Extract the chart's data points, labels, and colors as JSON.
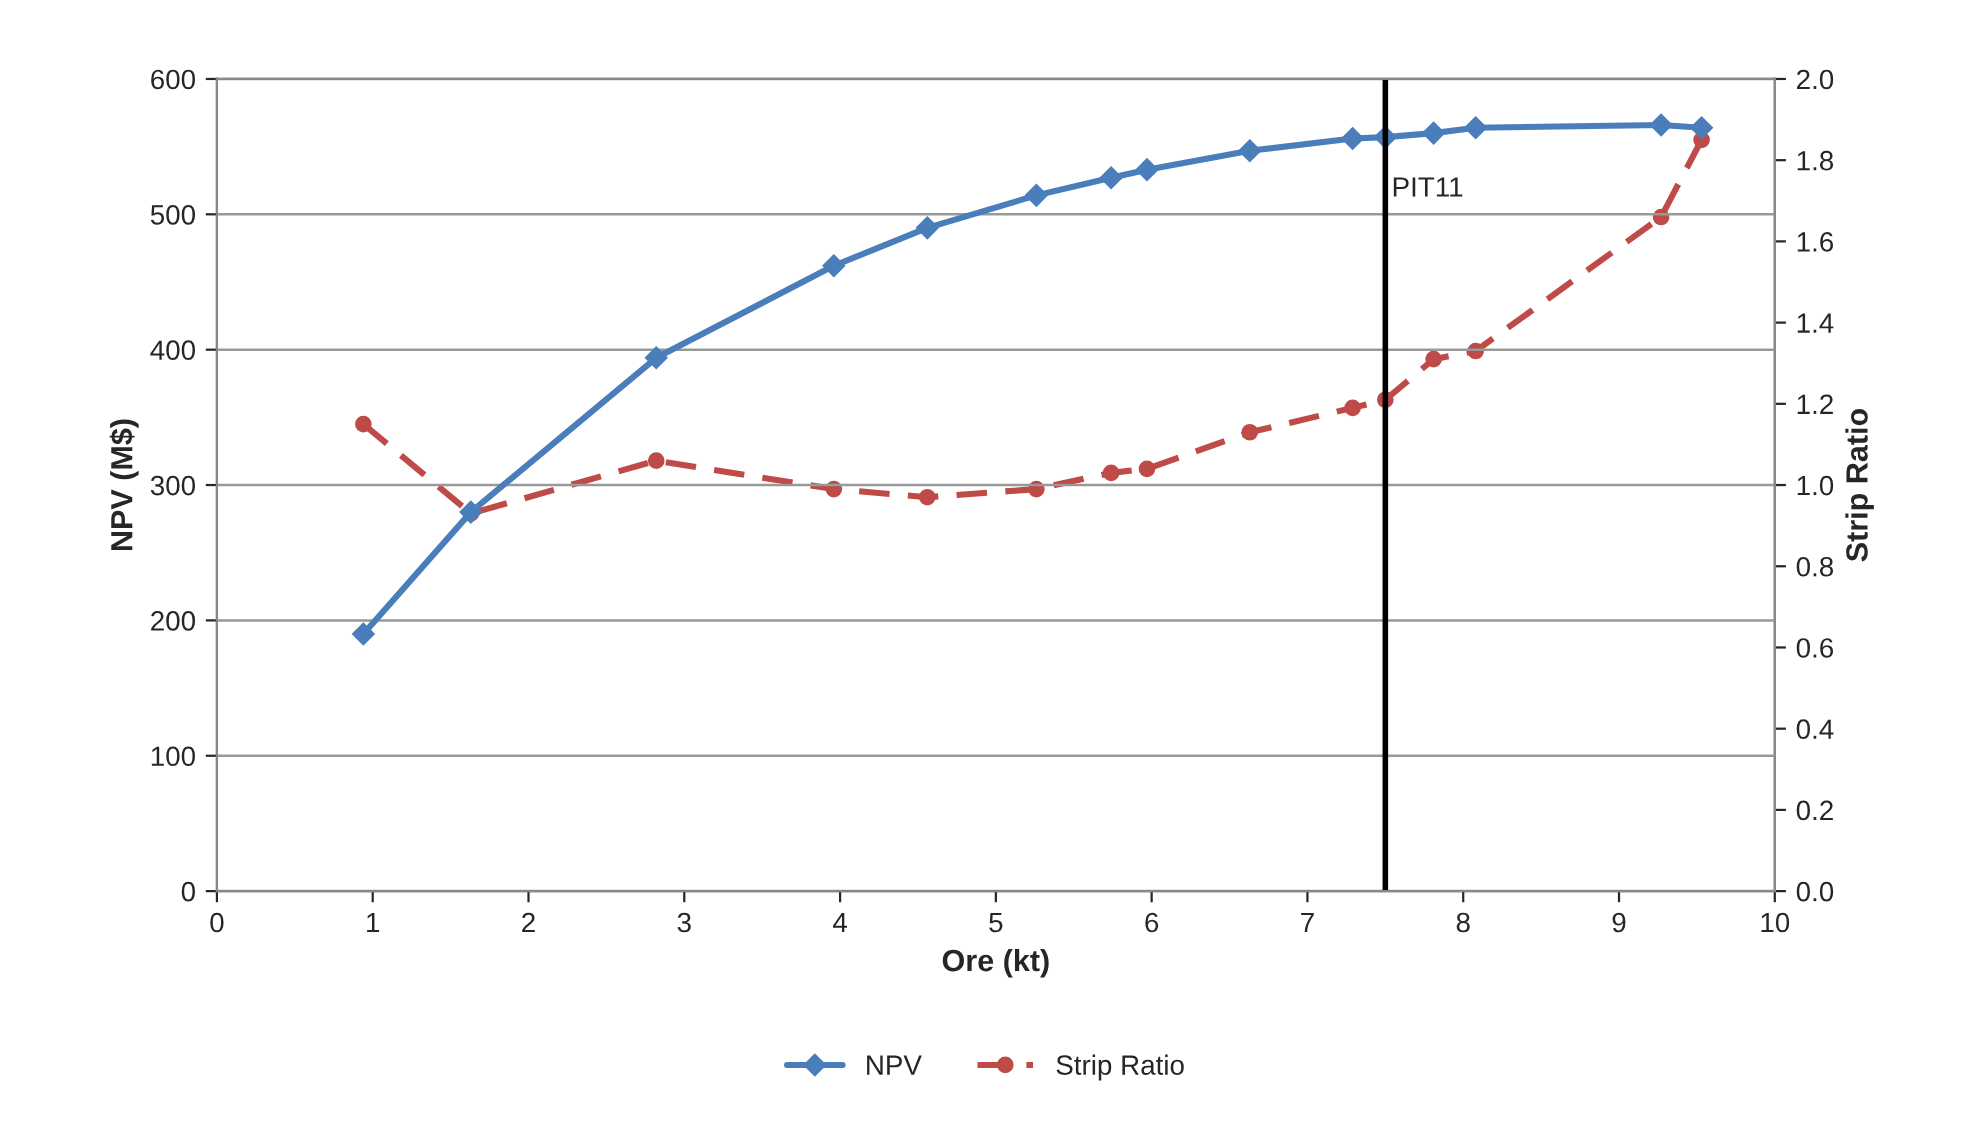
{
  "chart_data": {
    "type": "line",
    "xlabel": "Ore (kt)",
    "ylabel": "NPV (M$)",
    "y2label": "Strip Ratio",
    "xlim": [
      0,
      10
    ],
    "xticks": [
      0,
      1,
      2,
      3,
      4,
      5,
      6,
      7,
      8,
      9,
      10
    ],
    "ylim": [
      0,
      600
    ],
    "yticks": [
      0,
      100,
      200,
      300,
      400,
      500,
      600
    ],
    "y2lim": [
      0,
      2.0
    ],
    "y2ticks": [
      {
        "value": 0,
        "label": "0.0"
      },
      {
        "value": 0.2,
        "label": "0.2"
      },
      {
        "value": 0.4,
        "label": "0.4"
      },
      {
        "value": 0.6,
        "label": "0.6"
      },
      {
        "value": 0.8,
        "label": "0.8"
      },
      {
        "value": 1.0,
        "label": "1.0"
      },
      {
        "value": 1.2,
        "label": "1.2"
      },
      {
        "value": 1.4,
        "label": "1.4"
      },
      {
        "value": 1.6,
        "label": "1.6"
      },
      {
        "value": 1.8,
        "label": "1.8"
      },
      {
        "value": 2.0,
        "label": "2.0"
      }
    ],
    "grid": "y",
    "legend": "bottom",
    "x": [
      0.94,
      1.63,
      2.82,
      3.96,
      4.56,
      5.26,
      5.74,
      5.97,
      6.63,
      7.29,
      7.5,
      7.81,
      8.08,
      9.27,
      9.53
    ],
    "series": [
      {
        "name": "NPV",
        "color": "#4a7ebb",
        "marker": "diamond",
        "line_style": "solid",
        "values": [
          190,
          280,
          394,
          462,
          490,
          514,
          527,
          533,
          547,
          556,
          557,
          560,
          564,
          566,
          564
        ]
      },
      {
        "name": "Strip Ratio",
        "color": "#be4b48",
        "marker": "circle",
        "line_style": "dashed",
        "axis": "y2",
        "values": [
          1.15,
          0.93,
          1.06,
          0.99,
          0.97,
          0.99,
          1.03,
          1.04,
          1.13,
          1.19,
          1.21,
          1.31,
          1.33,
          1.66,
          1.85
        ]
      }
    ],
    "ref_lines": [
      {
        "axis": "x",
        "value": 7.5,
        "label": "PIT11",
        "color": "#000000"
      }
    ]
  }
}
